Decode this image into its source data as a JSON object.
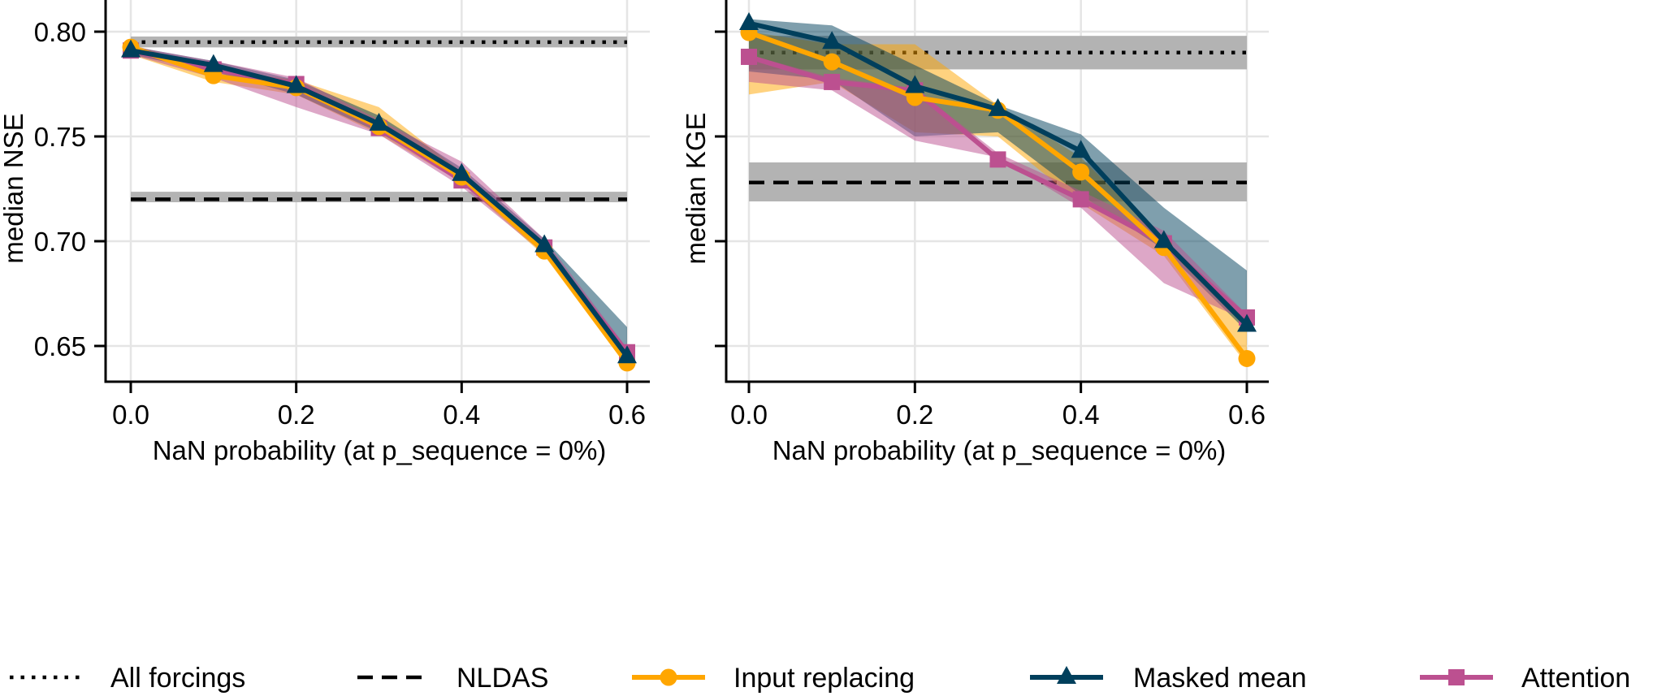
{
  "chart_data": [
    {
      "type": "line",
      "panel": "left",
      "title": "",
      "xlabel": "NaN probability (at p_sequence = 0%)",
      "ylabel": "median NSE",
      "x": [
        0.0,
        0.1,
        0.2,
        0.3,
        0.4,
        0.5,
        0.6
      ],
      "xlim": [
        -0.03,
        0.63
      ],
      "ylim": [
        0.632,
        0.815
      ],
      "xticks": [
        0.0,
        0.2,
        0.4,
        0.6
      ],
      "xtick_labels": [
        "0.0",
        "0.2",
        "0.4",
        "0.6"
      ],
      "yticks": [
        0.65,
        0.7,
        0.75,
        0.8
      ],
      "ytick_labels": [
        "0.65",
        "0.70",
        "0.75",
        "0.80"
      ],
      "grid": true,
      "reference_lines": [
        {
          "name": "All forcings",
          "style": "dotted",
          "value": 0.795,
          "band": [
            0.7925,
            0.7977
          ]
        },
        {
          "name": "NLDAS",
          "style": "dashed",
          "value": 0.72,
          "band": [
            0.7186,
            0.7236
          ]
        }
      ],
      "series": [
        {
          "name": "Input replacing",
          "marker": "circle",
          "values": [
            0.7926,
            0.779,
            0.7733,
            0.7547,
            0.7306,
            0.6953,
            0.6419
          ],
          "band_low": [
            0.789,
            0.776,
            0.77,
            0.751,
            0.728,
            0.693,
            0.64
          ],
          "band_high": [
            0.794,
            0.782,
            0.777,
            0.764,
            0.733,
            0.699,
            0.645
          ]
        },
        {
          "name": "Masked mean",
          "marker": "triangle",
          "values": [
            0.791,
            0.784,
            0.774,
            0.756,
            0.732,
            0.698,
            0.645
          ],
          "band_low": [
            0.789,
            0.781,
            0.77,
            0.752,
            0.729,
            0.695,
            0.643
          ],
          "band_high": [
            0.793,
            0.786,
            0.777,
            0.76,
            0.735,
            0.701,
            0.659
          ]
        },
        {
          "name": "Attention",
          "marker": "square",
          "values": [
            0.791,
            0.782,
            0.775,
            0.754,
            0.729,
            0.697,
            0.647
          ],
          "band_low": [
            0.789,
            0.778,
            0.764,
            0.751,
            0.726,
            0.694,
            0.644
          ],
          "band_high": [
            0.793,
            0.786,
            0.778,
            0.758,
            0.738,
            0.701,
            0.649
          ]
        }
      ]
    },
    {
      "type": "line",
      "panel": "right",
      "title": "",
      "xlabel": "NaN probability (at p_sequence = 0%)",
      "ylabel": "median KGE",
      "x": [
        0.0,
        0.1,
        0.2,
        0.3,
        0.4,
        0.5,
        0.6
      ],
      "xlim": [
        -0.03,
        0.63
      ],
      "ylim": [
        0.632,
        0.815
      ],
      "xticks": [
        0.0,
        0.2,
        0.4,
        0.6
      ],
      "xtick_labels": [
        "0.0",
        "0.2",
        "0.4",
        "0.6"
      ],
      "yticks": [
        0.65,
        0.7,
        0.75,
        0.8
      ],
      "ytick_labels": [
        "",
        "",
        "",
        ""
      ],
      "grid": true,
      "reference_lines": [
        {
          "name": "All forcings",
          "style": "dotted",
          "value": 0.79,
          "band": [
            0.782,
            0.798
          ]
        },
        {
          "name": "NLDAS",
          "style": "dashed",
          "value": 0.728,
          "band": [
            0.719,
            0.7376
          ]
        }
      ],
      "series": [
        {
          "name": "Input replacing",
          "marker": "circle",
          "values": [
            0.7996,
            0.7856,
            0.7686,
            0.7625,
            0.733,
            0.697,
            0.644
          ],
          "band_low": [
            0.77,
            0.776,
            0.752,
            0.75,
            0.718,
            0.693,
            0.641
          ],
          "band_high": [
            0.8,
            0.794,
            0.794,
            0.765,
            0.74,
            0.7,
            0.66
          ]
        },
        {
          "name": "Masked mean",
          "marker": "triangle",
          "values": [
            0.804,
            0.795,
            0.774,
            0.763,
            0.743,
            0.7,
            0.66
          ],
          "band_low": [
            0.781,
            0.777,
            0.75,
            0.752,
            0.722,
            0.696,
            0.657
          ],
          "band_high": [
            0.806,
            0.803,
            0.784,
            0.765,
            0.751,
            0.716,
            0.686
          ]
        },
        {
          "name": "Attention",
          "marker": "square",
          "values": [
            0.788,
            0.776,
            0.772,
            0.739,
            0.72,
            0.699,
            0.6636
          ],
          "band_low": [
            0.776,
            0.772,
            0.748,
            0.74,
            0.716,
            0.68,
            0.662
          ],
          "band_high": [
            0.789,
            0.778,
            0.773,
            0.742,
            0.724,
            0.705,
            0.665
          ]
        }
      ]
    }
  ],
  "legend": {
    "placement": "bottom",
    "items": [
      {
        "label": "All forcings",
        "style": "dotted",
        "color": "#000000"
      },
      {
        "label": "NLDAS",
        "style": "dashed",
        "color": "#000000"
      },
      {
        "label": "Input replacing",
        "style": "line-circle",
        "color": "#FFA600"
      },
      {
        "label": "Masked mean",
        "style": "line-triangle",
        "color": "#003F5C"
      },
      {
        "label": "Attention",
        "style": "line-square",
        "color": "#BC5090"
      }
    ]
  },
  "colors": {
    "Input replacing": "#FFA600",
    "Masked mean": "#003F5C",
    "Attention": "#BC5090",
    "reference_band": "#B3B3B3",
    "grid": "#E5E5E5",
    "axis": "#000000"
  }
}
